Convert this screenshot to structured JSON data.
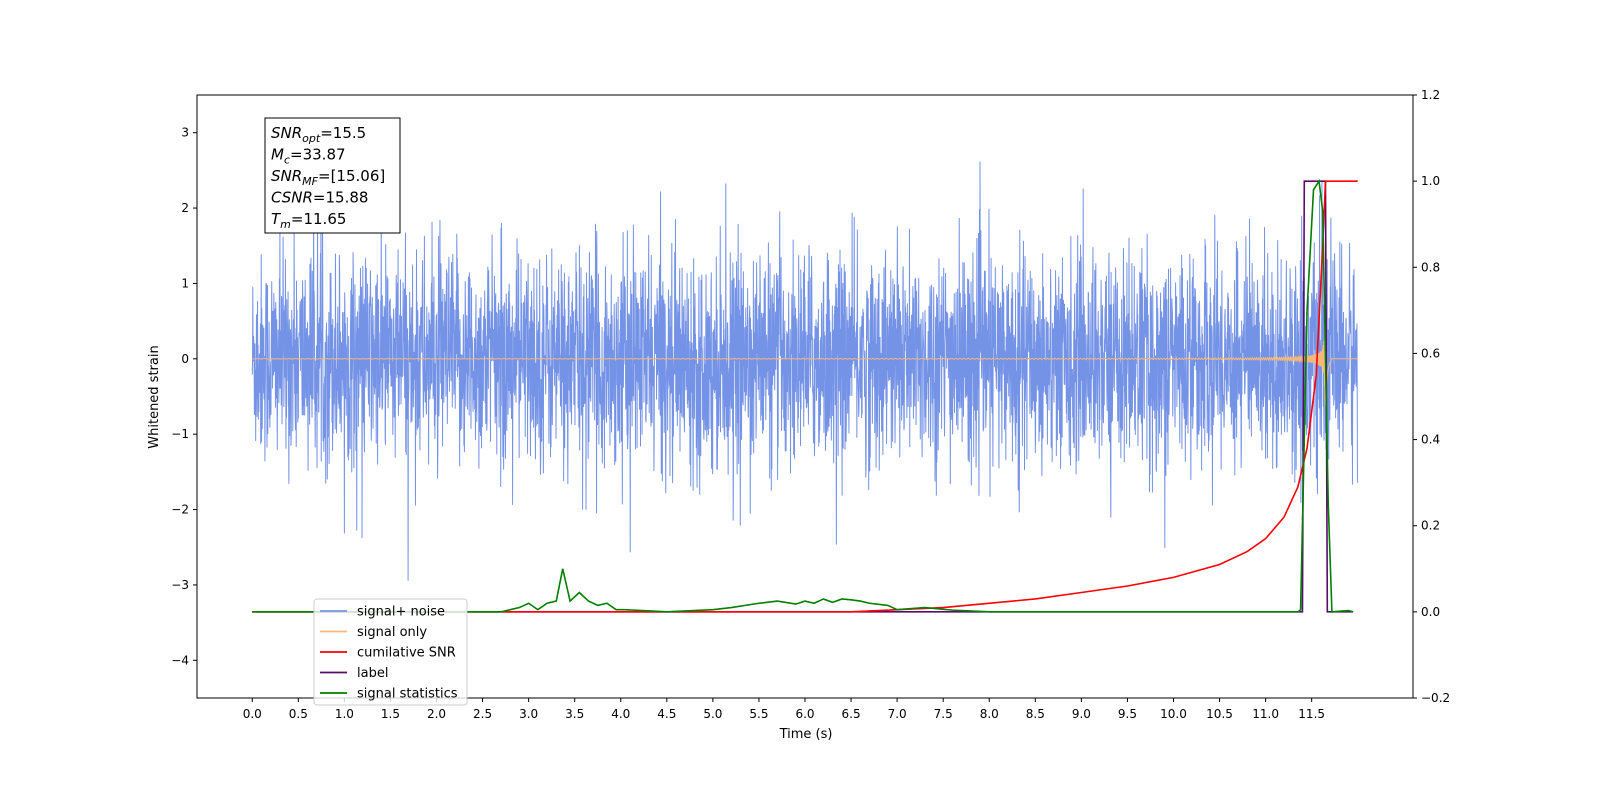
{
  "chart_data": {
    "type": "line",
    "xlabel": "Time (s)",
    "ylabel": "Whitened strain",
    "xlim": [
      -0.6,
      12.6
    ],
    "ylim": [
      -4.5,
      3.5
    ],
    "y2lim": [
      -0.2,
      1.2
    ],
    "x_ticks": [
      "0.0",
      "0.5",
      "1.0",
      "1.5",
      "2.0",
      "2.5",
      "3.0",
      "3.5",
      "4.0",
      "4.5",
      "5.0",
      "5.5",
      "6.0",
      "6.5",
      "7.0",
      "7.5",
      "8.0",
      "8.5",
      "9.0",
      "9.5",
      "10.0",
      "10.5",
      "11.0",
      "11.5"
    ],
    "y_ticks": [
      "3",
      "2",
      "1",
      "0",
      "−1",
      "−2",
      "−3",
      "−4"
    ],
    "y2_ticks": [
      "1.2",
      "1.0",
      "0.8",
      "0.6",
      "0.4",
      "0.2",
      "0.0",
      "−0.2"
    ],
    "grid": false,
    "legend_position": "lower-left",
    "annotation": {
      "lines": [
        {
          "sym": "SNR",
          "sub": "opt",
          "val": "=15.5"
        },
        {
          "sym": "M",
          "sub": "c",
          "val": "=33.87"
        },
        {
          "sym": "SNR",
          "sub": "MF",
          "val": "=[15.06]"
        },
        {
          "sym": "CSNR",
          "sub": "",
          "val": "=15.88"
        },
        {
          "sym": "T",
          "sub": "m",
          "val": "=11.65"
        }
      ]
    },
    "series": [
      {
        "name": "signal+ noise",
        "axis": "left",
        "color": "#7593e6",
        "approx_amplitude": 1.1,
        "t_start": 0.0,
        "t_end": 12.0
      },
      {
        "name": "signal only",
        "axis": "left",
        "color": "#f5b87a",
        "merger_time": 11.65
      },
      {
        "name": "cumilative SNR",
        "axis": "right",
        "color": "#ff0000",
        "x": [
          0.0,
          6.5,
          7.5,
          8.5,
          9.0,
          9.5,
          10.0,
          10.5,
          10.8,
          11.0,
          11.2,
          11.35,
          11.45,
          11.55,
          11.62,
          11.65,
          12.0
        ],
        "y": [
          0.0,
          0.0,
          0.01,
          0.03,
          0.045,
          0.06,
          0.08,
          0.11,
          0.14,
          0.17,
          0.22,
          0.29,
          0.38,
          0.55,
          0.85,
          1.0,
          1.0
        ]
      },
      {
        "name": "label",
        "axis": "right",
        "color": "#5a0a6a",
        "x": [
          0.0,
          11.4,
          11.42,
          11.65,
          11.67,
          11.95
        ],
        "y": [
          0.0,
          0.0,
          1.0,
          1.0,
          0.0,
          0.0
        ]
      },
      {
        "name": "signal statistics",
        "axis": "right",
        "color": "#008000",
        "x": [
          0.0,
          2.7,
          2.8,
          2.9,
          3.0,
          3.1,
          3.2,
          3.3,
          3.37,
          3.45,
          3.55,
          3.65,
          3.75,
          3.85,
          3.95,
          4.05,
          4.5,
          5.0,
          5.2,
          5.5,
          5.7,
          5.9,
          6.0,
          6.1,
          6.2,
          6.3,
          6.4,
          6.5,
          6.6,
          6.7,
          6.9,
          7.0,
          7.3,
          7.6,
          8.0,
          11.35,
          11.38,
          11.45,
          11.52,
          11.58,
          11.62,
          11.68,
          11.72,
          11.9,
          11.95
        ],
        "y": [
          0.0,
          0.0,
          0.005,
          0.01,
          0.02,
          0.005,
          0.02,
          0.025,
          0.1,
          0.025,
          0.045,
          0.025,
          0.015,
          0.02,
          0.005,
          0.005,
          0.0,
          0.005,
          0.01,
          0.02,
          0.025,
          0.018,
          0.025,
          0.02,
          0.03,
          0.022,
          0.03,
          0.028,
          0.025,
          0.02,
          0.015,
          0.005,
          0.01,
          0.004,
          0.0,
          0.0,
          0.005,
          0.7,
          0.98,
          1.0,
          0.93,
          0.25,
          0.0,
          0.003,
          0.0
        ]
      }
    ]
  }
}
